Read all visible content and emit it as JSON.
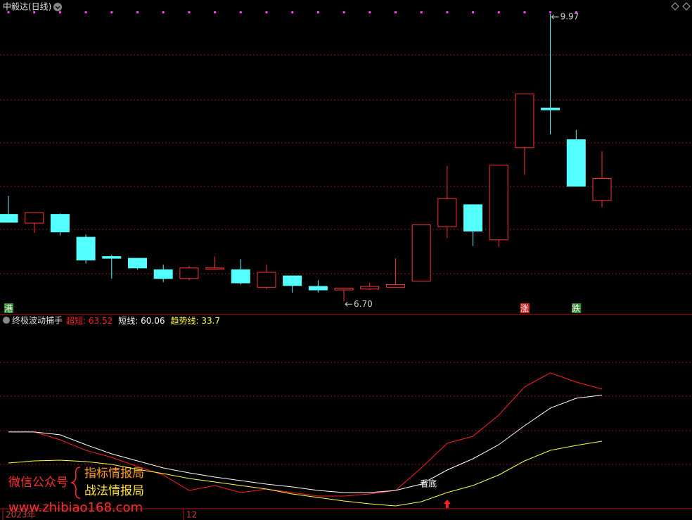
{
  "chart_data": [
    {
      "type": "candlestick",
      "title": "中毅达(日线)",
      "categories": [
        "2023年",
        null,
        null,
        null,
        null,
        null,
        null,
        "12",
        null,
        null,
        null,
        null,
        null,
        null,
        null,
        null,
        null,
        null,
        null,
        null,
        null,
        null,
        null,
        null
      ],
      "open": [
        7.69,
        7.59,
        7.69,
        7.43,
        7.21,
        7.19,
        7.06,
        6.96,
        7.07,
        7.06,
        6.86,
        6.99,
        6.87,
        6.83,
        6.84,
        6.86,
        6.93,
        7.55,
        7.8,
        7.4,
        8.45,
        8.9,
        8.54,
        7.85
      ],
      "close": [
        7.6,
        7.71,
        7.49,
        7.17,
        7.19,
        7.08,
        6.96,
        7.08,
        7.08,
        6.91,
        7.03,
        6.88,
        6.83,
        6.85,
        6.87,
        6.89,
        7.57,
        7.87,
        7.5,
        8.25,
        9.06,
        8.88,
        8.01,
        8.1
      ],
      "high": [
        7.9,
        7.71,
        7.7,
        7.46,
        7.23,
        7.19,
        7.12,
        7.1,
        7.21,
        7.18,
        7.12,
        6.99,
        6.94,
        6.85,
        6.91,
        7.19,
        7.57,
        8.24,
        7.8,
        8.25,
        9.06,
        9.97,
        8.65,
        8.41
      ],
      "low": [
        7.6,
        7.48,
        7.45,
        7.13,
        6.96,
        7.06,
        6.92,
        6.94,
        7.07,
        6.89,
        6.84,
        6.8,
        6.8,
        6.7,
        6.83,
        6.86,
        6.93,
        7.42,
        7.33,
        7.32,
        8.14,
        8.6,
        8.01,
        7.77
      ],
      "up_color": "#ff3232",
      "down_color": "#54ffff",
      "ylim": [
        6.55,
        10.13
      ],
      "grid": true,
      "annotations": [
        {
          "text": "9.97",
          "index": 21,
          "value": 9.97
        },
        {
          "text": "6.70",
          "index": 13,
          "value": 6.7
        }
      ],
      "signals": [
        {
          "text": "港",
          "index": 0,
          "color": "#2e8b2e"
        },
        {
          "text": "涨",
          "index": 20,
          "color": "#d02020"
        },
        {
          "text": "跌",
          "index": 22,
          "color": "#2e8b2e"
        }
      ]
    },
    {
      "type": "line",
      "title": "终极波动捕手",
      "series": [
        {
          "name": "超短",
          "color": "#ff2020",
          "values": [
            38.94,
            38.94,
            34.5,
            28.46,
            24.43,
            19.19,
            14.35,
            5.49,
            8.31,
            4.28,
            6.3,
            4.28,
            2.26,
            2.26,
            3.47,
            5.49,
            18.38,
            32.49,
            36.52,
            48.61,
            64.73,
            72.79,
            67.55,
            63.52
          ]
        },
        {
          "name": "短线",
          "color": "#ffffff",
          "values": [
            38.94,
            38.94,
            37.33,
            31.68,
            26.44,
            22.41,
            18.38,
            15.56,
            13.14,
            11.13,
            9.12,
            7.5,
            5.49,
            4.28,
            4.28,
            5.49,
            9.12,
            17.18,
            23.62,
            31.68,
            42.56,
            52.64,
            58.28,
            60.06
          ]
        },
        {
          "name": "趋势线",
          "color": "#ffff40",
          "values": [
            21.2,
            22.41,
            22.82,
            22.01,
            20.4,
            17.58,
            15.16,
            12.34,
            10.32,
            8.31,
            6.3,
            3.47,
            1.46,
            -0.56,
            -2.18,
            -3.39,
            -0.97,
            4.28,
            8.31,
            14.35,
            22.41,
            28.46,
            31.28,
            33.7
          ]
        }
      ],
      "ylim": [
        -5,
        105
      ],
      "grid": true,
      "annotations": [
        {
          "text": "看底",
          "index": 16
        }
      ]
    }
  ],
  "watermark": {
    "line1": "微信公众号",
    "line2": "指标情报局",
    "line3": "战法情报局",
    "url": "www.zhibiao168.com"
  }
}
